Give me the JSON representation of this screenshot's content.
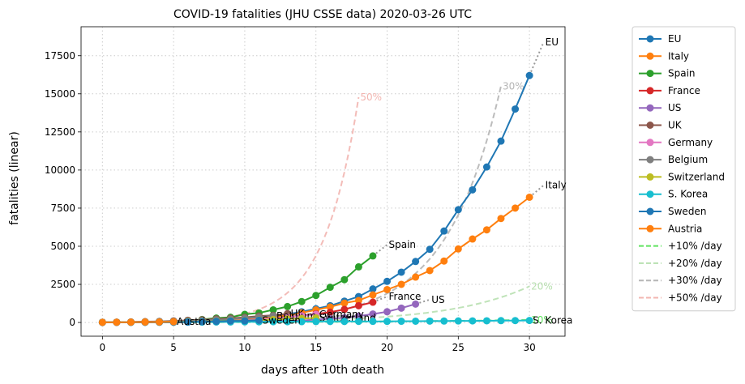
{
  "chart_data": {
    "type": "line",
    "title": "COVID-19 fatalities (JHU CSSE data) 2020-03-26 UTC",
    "xlabel": "days after 10th death",
    "ylabel": "fatalities (linear)",
    "xlim": [
      -1.5,
      32.5
    ],
    "ylim": [
      -900,
      19400
    ],
    "xticks": [
      0,
      5,
      10,
      15,
      20,
      25,
      30
    ],
    "yticks": [
      0,
      2500,
      5000,
      7500,
      10000,
      12500,
      15000,
      17500
    ],
    "grid": true,
    "legend_position": "outside-right",
    "series": [
      {
        "name": "EU",
        "color": "#1f77b4",
        "marker": "o",
        "x": [
          0,
          1,
          2,
          3,
          4,
          5,
          6,
          7,
          8,
          9,
          10,
          11,
          12,
          13,
          14,
          15,
          16,
          17,
          18,
          19,
          20,
          21,
          22,
          23,
          24,
          25,
          26,
          27,
          28,
          29,
          30
        ],
        "y": [
          10,
          12,
          15,
          20,
          26,
          35,
          50,
          70,
          100,
          150,
          220,
          300,
          420,
          550,
          700,
          900,
          1100,
          1400,
          1700,
          2200,
          2700,
          3300,
          4000,
          4800,
          6000,
          7400,
          8700,
          10200,
          11900,
          14000,
          16200
        ],
        "end_label": "EU",
        "projection": [
          [
            30,
            16200
          ],
          [
            31,
            18400
          ]
        ]
      },
      {
        "name": "Italy",
        "color": "#ff7f0e",
        "marker": "o",
        "x": [
          0,
          1,
          2,
          3,
          4,
          5,
          6,
          7,
          8,
          9,
          10,
          11,
          12,
          13,
          14,
          15,
          16,
          17,
          18,
          19,
          20,
          21,
          22,
          23,
          24,
          25,
          26,
          27,
          28,
          29,
          30
        ],
        "y": [
          10,
          12,
          17,
          21,
          29,
          34,
          52,
          79,
          107,
          148,
          197,
          233,
          366,
          463,
          631,
          827,
          1016,
          1266,
          1441,
          1809,
          2158,
          2503,
          2978,
          3405,
          4032,
          4825,
          5476,
          6077,
          6820,
          7503,
          8215
        ],
        "end_label": "Italy",
        "projection": [
          [
            30,
            8215
          ],
          [
            31,
            9000
          ]
        ]
      },
      {
        "name": "Spain",
        "color": "#2ca02c",
        "marker": "o",
        "x": [
          0,
          1,
          2,
          3,
          4,
          5,
          6,
          7,
          8,
          9,
          10,
          11,
          12,
          13,
          14,
          15,
          16,
          17,
          18,
          19
        ],
        "y": [
          10,
          17,
          28,
          35,
          54,
          55,
          133,
          195,
          289,
          342,
          533,
          623,
          830,
          1043,
          1375,
          1772,
          2311,
          2808,
          3647,
          4365
        ],
        "end_label": "Spain",
        "projection": [
          [
            19,
            4365
          ],
          [
            20,
            5100
          ]
        ]
      },
      {
        "name": "France",
        "color": "#d62728",
        "marker": "o",
        "x": [
          0,
          1,
          2,
          3,
          4,
          5,
          6,
          7,
          8,
          9,
          10,
          11,
          12,
          13,
          14,
          15,
          16,
          17,
          18,
          19
        ],
        "y": [
          10,
          12,
          18,
          25,
          33,
          48,
          61,
          79,
          91,
          91,
          149,
          149,
          244,
          372,
          450,
          562,
          674,
          860,
          1100,
          1331
        ],
        "end_label": "France",
        "projection": [
          [
            19,
            1331
          ],
          [
            20,
            1700
          ]
        ]
      },
      {
        "name": "US",
        "color": "#9467bd",
        "marker": "o",
        "x": [
          0,
          1,
          2,
          3,
          4,
          5,
          6,
          7,
          8,
          9,
          10,
          11,
          12,
          13,
          14,
          15,
          16,
          17,
          18,
          19,
          20,
          21,
          22
        ],
        "y": [
          11,
          12,
          14,
          17,
          21,
          22,
          28,
          36,
          40,
          47,
          54,
          63,
          85,
          108,
          118,
          200,
          244,
          307,
          417,
          557,
          706,
          942,
          1209
        ],
        "end_label": "US",
        "projection": [
          [
            22,
            1209
          ],
          [
            23,
            1500
          ]
        ]
      },
      {
        "name": "UK",
        "color": "#8c564b",
        "marker": "o",
        "x": [
          0,
          1,
          2,
          3,
          4,
          5,
          6,
          7,
          8,
          9,
          10,
          11,
          12,
          13
        ],
        "y": [
          10,
          21,
          35,
          55,
          71,
          104,
          144,
          177,
          233,
          281,
          335,
          422,
          465,
          578
        ],
        "end_label": "UK",
        "projection": []
      },
      {
        "name": "Germany",
        "color": "#e377c2",
        "marker": "o",
        "x": [
          0,
          1,
          2,
          3,
          4,
          5,
          6,
          7,
          8,
          9,
          10,
          11,
          12,
          13,
          14,
          15
        ],
        "y": [
          12,
          13,
          20,
          24,
          28,
          44,
          67,
          84,
          94,
          123,
          157,
          206,
          267,
          342,
          433,
          533
        ],
        "end_label": "Germany",
        "projection": []
      },
      {
        "name": "Belgium",
        "color": "#7f7f7f",
        "marker": "o",
        "x": [
          0,
          1,
          2,
          3,
          4,
          5,
          6,
          7,
          8,
          9,
          10,
          11,
          12
        ],
        "y": [
          10,
          14,
          21,
          37,
          67,
          75,
          88,
          122,
          178,
          220,
          289,
          353,
          431
        ],
        "end_label": "Belgium",
        "projection": []
      },
      {
        "name": "Switzerland",
        "color": "#bcbd22",
        "marker": "o",
        "x": [
          0,
          1,
          2,
          3,
          4,
          5,
          6,
          7,
          8,
          9,
          10,
          11,
          12,
          13,
          14,
          15
        ],
        "y": [
          11,
          13,
          14,
          27,
          28,
          41,
          54,
          75,
          98,
          120,
          122,
          153,
          191,
          231,
          264,
          300
        ],
        "end_label": "Switzerland",
        "projection": []
      },
      {
        "name": "S. Korea",
        "color": "#17becf",
        "marker": "o",
        "x": [
          0,
          1,
          2,
          3,
          4,
          5,
          6,
          7,
          8,
          9,
          10,
          11,
          12,
          13,
          14,
          15,
          16,
          17,
          18,
          19,
          20,
          21,
          22,
          23,
          24,
          25,
          26,
          27,
          28,
          29,
          30
        ],
        "y": [
          11,
          12,
          13,
          13,
          16,
          17,
          28,
          28,
          35,
          35,
          42,
          44,
          50,
          53,
          54,
          60,
          66,
          66,
          72,
          75,
          75,
          81,
          84,
          91,
          94,
          102,
          104,
          111,
          120,
          126,
          131
        ],
        "end_label": "S. Korea",
        "projection": []
      },
      {
        "name": "Sweden",
        "color": "#1f77b4",
        "marker": "o",
        "x": [
          0,
          1,
          2,
          3,
          4,
          5,
          6,
          7,
          8,
          9,
          10,
          11
        ],
        "y": [
          10,
          11,
          16,
          20,
          21,
          25,
          36,
          62,
          77,
          105,
          110,
          146
        ],
        "end_label": "Sweden",
        "projection": []
      },
      {
        "name": "Austria",
        "color": "#ff7f0e",
        "marker": "o",
        "x": [
          0,
          1,
          2,
          3,
          4,
          5
        ],
        "y": [
          10,
          16,
          21,
          28,
          30,
          49
        ],
        "end_label": "Austria",
        "projection": []
      }
    ],
    "reference_lines": [
      {
        "name": "+10% /day",
        "color": "#5fe35f",
        "rate": 0.1,
        "start": 10,
        "x_end": 30,
        "end_label": "10%"
      },
      {
        "name": "+20% /day",
        "color": "#b8e0b0",
        "rate": 0.2,
        "start": 10,
        "x_end": 30,
        "end_label": "20%"
      },
      {
        "name": "+30% /day",
        "color": "#b5b5b5",
        "rate": 0.3,
        "start": 10,
        "x_end": 28,
        "end_label": "30%"
      },
      {
        "name": "+50% /day",
        "color": "#f2b5b0",
        "rate": 0.5,
        "start": 10,
        "x_end": 18,
        "end_label": "50%"
      }
    ]
  }
}
